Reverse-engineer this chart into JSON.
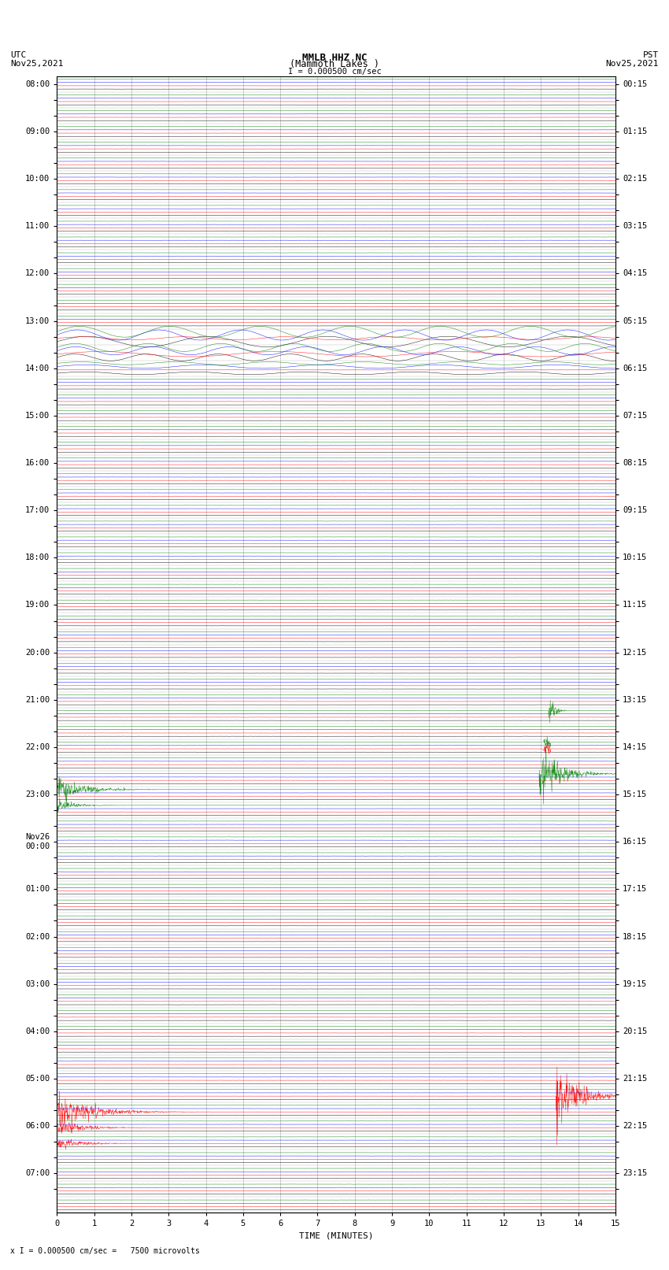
{
  "title_line1": "MMLB HHZ NC",
  "title_line2": "(Mammoth Lakes )",
  "title_line3": "I = 0.000500 cm/sec",
  "label_utc": "UTC\nNov25,2021",
  "label_pst": "PST\nNov25,2021",
  "xlabel": "TIME (MINUTES)",
  "footer": "x I = 0.000500 cm/sec =   7500 microvolts",
  "left_times": [
    "08:00",
    "",
    "",
    "09:00",
    "",
    "",
    "10:00",
    "",
    "",
    "11:00",
    "",
    "",
    "12:00",
    "",
    "",
    "13:00",
    "",
    "",
    "14:00",
    "",
    "",
    "15:00",
    "",
    "",
    "16:00",
    "",
    "",
    "17:00",
    "",
    "",
    "18:00",
    "",
    "",
    "19:00",
    "",
    "",
    "20:00",
    "",
    "",
    "21:00",
    "",
    "",
    "22:00",
    "",
    "",
    "23:00",
    "",
    "",
    "Nov26\n00:00",
    "",
    "",
    "01:00",
    "",
    "",
    "02:00",
    "",
    "",
    "03:00",
    "",
    "",
    "04:00",
    "",
    "",
    "05:00",
    "",
    "",
    "06:00",
    "",
    "",
    "07:00",
    ""
  ],
  "right_times": [
    "00:15",
    "",
    "",
    "01:15",
    "",
    "",
    "02:15",
    "",
    "",
    "03:15",
    "",
    "",
    "04:15",
    "",
    "",
    "05:15",
    "",
    "",
    "06:15",
    "",
    "",
    "07:15",
    "",
    "",
    "08:15",
    "",
    "",
    "09:15",
    "",
    "",
    "10:15",
    "",
    "",
    "11:15",
    "",
    "",
    "12:15",
    "",
    "",
    "13:15",
    "",
    "",
    "14:15",
    "",
    "",
    "15:15",
    "",
    "",
    "16:15",
    "",
    "",
    "17:15",
    "",
    "",
    "18:15",
    "",
    "",
    "19:15",
    "",
    "",
    "20:15",
    "",
    "",
    "21:15",
    "",
    "",
    "22:15",
    "",
    "",
    "23:15",
    ""
  ],
  "n_rows": 72,
  "n_cols": 4,
  "colors": [
    "black",
    "red",
    "blue",
    "green"
  ],
  "xmin": 0,
  "xmax": 15,
  "background": "white",
  "grid_color": "#aaaaaa",
  "title_fontsize": 9,
  "tick_fontsize": 7.5,
  "label_fontsize": 8
}
